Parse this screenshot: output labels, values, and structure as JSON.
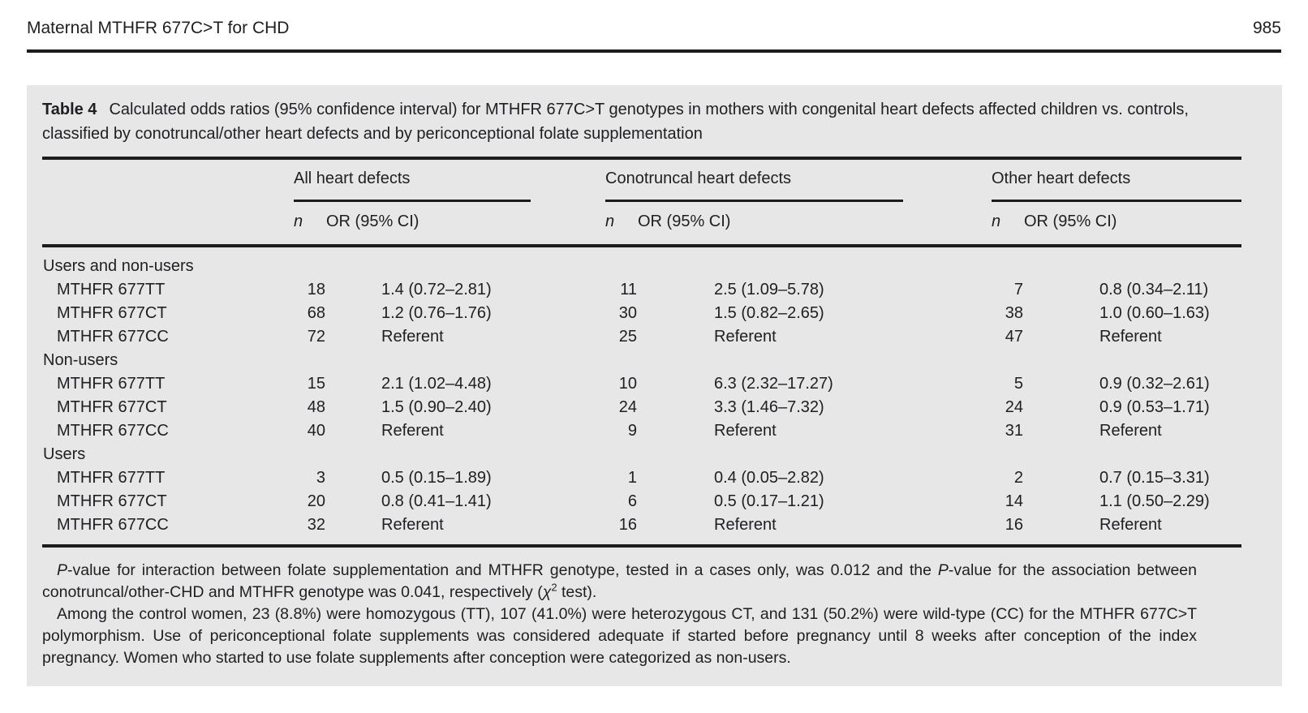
{
  "page": {
    "running_head": "Maternal MTHFR 677C>T for CHD",
    "page_number": "985"
  },
  "table": {
    "label": "Table 4",
    "caption": "Calculated odds ratios (95% confidence interval) for MTHFR 677C>T genotypes in mothers with congenital heart defects affected children vs. controls, classified by conotruncal/other heart defects and by periconceptional folate supplementation",
    "groups": [
      "All heart defects",
      "Conotruncal heart defects",
      "Other heart defects"
    ],
    "sub_headers": {
      "n": "n",
      "or": "OR (95% CI)"
    },
    "sections": [
      {
        "label": "Users and non-users",
        "rows": [
          {
            "genotype": "MTHFR 677TT",
            "all_n": "18",
            "all_or": "1.4 (0.72–2.81)",
            "cono_n": "11",
            "cono_or": "2.5 (1.09–5.78)",
            "other_n": "7",
            "other_or": "0.8 (0.34–2.11)"
          },
          {
            "genotype": "MTHFR 677CT",
            "all_n": "68",
            "all_or": "1.2 (0.76–1.76)",
            "cono_n": "30",
            "cono_or": "1.5 (0.82–2.65)",
            "other_n": "38",
            "other_or": "1.0 (0.60–1.63)"
          },
          {
            "genotype": "MTHFR 677CC",
            "all_n": "72",
            "all_or": "Referent",
            "cono_n": "25",
            "cono_or": "Referent",
            "other_n": "47",
            "other_or": "Referent"
          }
        ]
      },
      {
        "label": "Non-users",
        "rows": [
          {
            "genotype": "MTHFR 677TT",
            "all_n": "15",
            "all_or": "2.1 (1.02–4.48)",
            "cono_n": "10",
            "cono_or": "6.3 (2.32–17.27)",
            "other_n": "5",
            "other_or": "0.9 (0.32–2.61)"
          },
          {
            "genotype": "MTHFR 677CT",
            "all_n": "48",
            "all_or": "1.5 (0.90–2.40)",
            "cono_n": "24",
            "cono_or": "3.3 (1.46–7.32)",
            "other_n": "24",
            "other_or": "0.9 (0.53–1.71)"
          },
          {
            "genotype": "MTHFR 677CC",
            "all_n": "40",
            "all_or": "Referent",
            "cono_n": "9",
            "cono_or": "Referent",
            "other_n": "31",
            "other_or": "Referent"
          }
        ]
      },
      {
        "label": "Users",
        "rows": [
          {
            "genotype": "MTHFR 677TT",
            "all_n": "3",
            "all_or": "0.5 (0.15–1.89)",
            "cono_n": "1",
            "cono_or": "0.4 (0.05–2.82)",
            "other_n": "2",
            "other_or": "0.7 (0.15–3.31)"
          },
          {
            "genotype": "MTHFR 677CT",
            "all_n": "20",
            "all_or": "0.8 (0.41–1.41)",
            "cono_n": "6",
            "cono_or": "0.5 (0.17–1.21)",
            "other_n": "14",
            "other_or": "1.1 (0.50–2.29)"
          },
          {
            "genotype": "MTHFR 677CC",
            "all_n": "32",
            "all_or": "Referent",
            "cono_n": "16",
            "cono_or": "Referent",
            "other_n": "16",
            "other_or": "Referent"
          }
        ]
      }
    ],
    "footnotes": [
      {
        "segments": [
          {
            "style": "italic",
            "text": "P"
          },
          {
            "style": "normal",
            "text": "-value for interaction between folate supplementation and MTHFR genotype, tested in a cases only, was 0.012 and the "
          },
          {
            "style": "italic",
            "text": "P"
          },
          {
            "style": "normal",
            "text": "-value for the association between conotruncal/other-CHD and MTHFR genotype was 0.041, respectively ("
          },
          {
            "style": "italic",
            "text": "χ"
          },
          {
            "style": "sup",
            "text": "2"
          },
          {
            "style": "normal",
            "text": " test)."
          }
        ]
      },
      {
        "segments": [
          {
            "style": "normal",
            "text": "Among the control women, 23 (8.8%) were homozygous (TT), 107 (41.0%) were heterozygous CT, and 131 (50.2%) were wild-type (CC) for the MTHFR 677C>T polymorphism. Use of periconceptional folate supplements was considered adequate if started before pregnancy until 8 weeks after conception of the index pregnancy. Women who started to use folate supplements after conception were categorized as non-users."
          }
        ]
      }
    ]
  }
}
